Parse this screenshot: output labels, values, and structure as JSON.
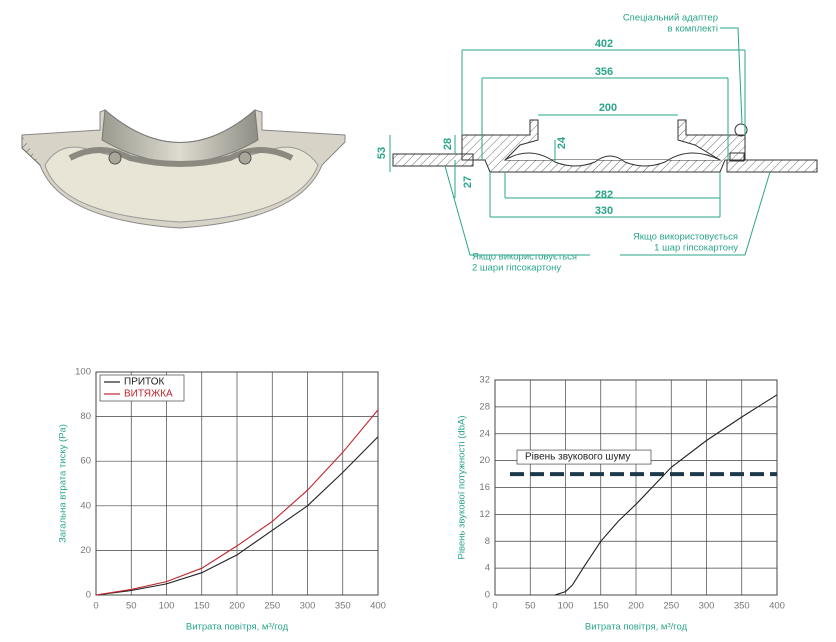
{
  "drawing": {
    "adapter_note": [
      "Спеціальний адаптер",
      "в комплекті"
    ],
    "dimensions": {
      "d402": "402",
      "d356": "356",
      "d200": "200",
      "d24": "24",
      "d53": "53",
      "d28": "28",
      "d27": "27",
      "d282": "282",
      "d330": "330"
    },
    "note_two_layers": [
      "Якщо використовується",
      "2 шари гіпсокартону"
    ],
    "note_one_layer": [
      "Якщо використовується",
      "1 шар гіпсокартону"
    ]
  },
  "chart_data": [
    {
      "type": "line",
      "x_label": "Витрата повітря, м³/год",
      "y_label": "Загальна втрата тиску (Pa)",
      "x": [
        0,
        50,
        100,
        150,
        200,
        250,
        300,
        350,
        400
      ],
      "series": [
        {
          "name": "ПРИТОК",
          "color": "#222222",
          "values": [
            0,
            2,
            5,
            10,
            18,
            29,
            40,
            55,
            71
          ]
        },
        {
          "name": "ВИТЯЖКА",
          "color": "#c0272d",
          "values": [
            0,
            2.5,
            6,
            12,
            22,
            33,
            47,
            64,
            83
          ]
        }
      ],
      "xlim": [
        0,
        400
      ],
      "xticks": [
        0,
        50,
        100,
        150,
        200,
        250,
        300,
        350,
        400
      ],
      "ylim": [
        0,
        100
      ],
      "yticks": [
        0,
        20,
        40,
        60,
        80,
        100
      ],
      "grid": true,
      "legend": "upper left"
    },
    {
      "type": "line",
      "x_label": "Витрата повітря, м³/год",
      "y_label": "Рівень звукової потужності (dbA)",
      "x": [
        85,
        100,
        110,
        125,
        150,
        175,
        200,
        250,
        300,
        350,
        400
      ],
      "values": [
        0,
        0.5,
        1.5,
        4,
        8,
        11,
        13.5,
        19,
        23,
        26.5,
        29.8
      ],
      "color": "#222222",
      "reference_line": {
        "value": 18,
        "label": "Рівень звукового шуму",
        "color": "#1d3a4a"
      },
      "xlim": [
        0,
        400
      ],
      "xticks": [
        0,
        50,
        100,
        150,
        200,
        250,
        300,
        350,
        400
      ],
      "ylim": [
        0,
        32
      ],
      "yticks": [
        0,
        4,
        8,
        12,
        16,
        20,
        24,
        28,
        32
      ],
      "grid": true
    }
  ]
}
